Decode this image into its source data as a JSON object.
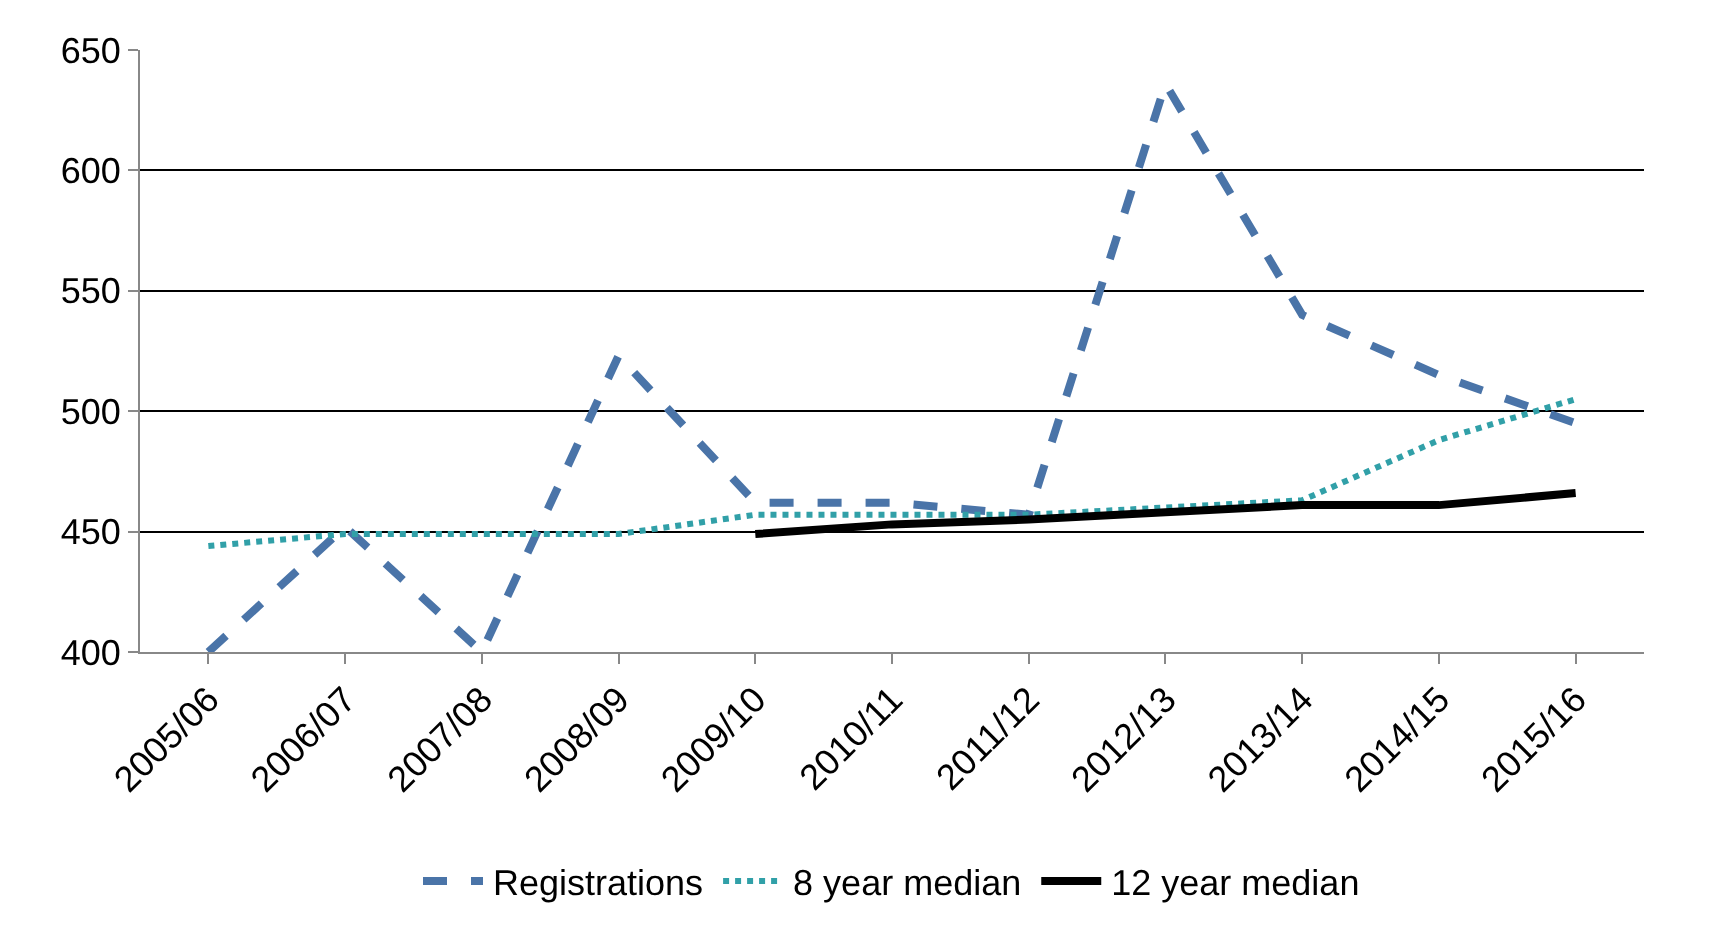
{
  "chart_data": {
    "type": "line",
    "categories": [
      "2005/06",
      "2006/07",
      "2007/08",
      "2008/09",
      "2009/10",
      "2010/11",
      "2011/12",
      "2012/13",
      "2013/14",
      "2014/15",
      "2015/16"
    ],
    "series": [
      {
        "name": "Registrations",
        "color": "#4a74a8",
        "line_style": "dashed",
        "values": [
          400,
          452,
          400,
          523,
          462,
          462,
          457,
          636,
          540,
          515,
          495
        ]
      },
      {
        "name": "8 year median",
        "color": "#31a0a8",
        "line_style": "dotted",
        "values": [
          444,
          449,
          449,
          449,
          457,
          457,
          457,
          460,
          463,
          488,
          505
        ]
      },
      {
        "name": "12 year median",
        "color": "#000000",
        "line_style": "solid",
        "values": [
          null,
          null,
          null,
          null,
          449,
          453,
          455,
          458,
          461,
          461,
          466
        ]
      }
    ],
    "ylim": [
      400,
      650
    ],
    "yticks": [
      400,
      450,
      500,
      550,
      600,
      650
    ],
    "grid": "y",
    "legend": "bottom",
    "marker": "none"
  }
}
